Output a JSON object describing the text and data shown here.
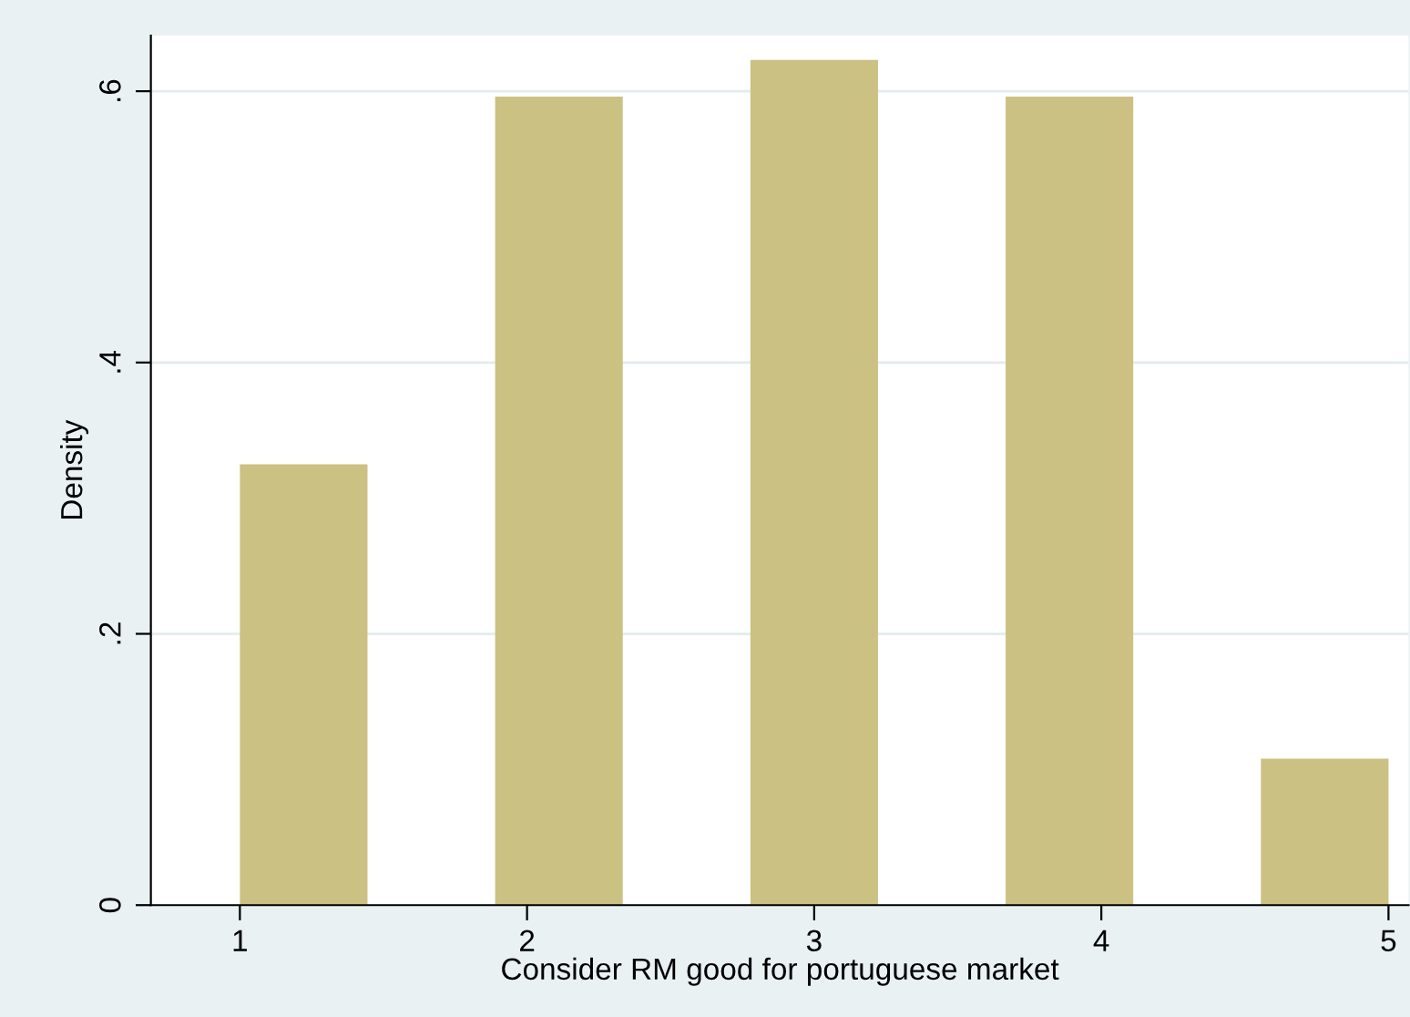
{
  "chart_data": {
    "type": "histogram",
    "xlabel": "Consider RM good for portuguese market",
    "ylabel": "Density",
    "bins": [
      1,
      1.4444,
      1.8889,
      2.3333,
      2.7778,
      3.2222,
      3.6667,
      4.1111,
      4.5556,
      5
    ],
    "values": [
      0.325,
      0,
      0.596,
      0,
      0.623,
      0,
      0.596,
      0,
      0.108
    ],
    "color": "#cbc182",
    "xlim": [
      0.69,
      5.07
    ],
    "xticks": [
      1,
      2,
      3,
      4,
      5
    ],
    "ylim": [
      0,
      0.641
    ],
    "yticks": [
      0,
      {
        "value": 0.2,
        "label": ".2"
      },
      {
        "value": 0.4,
        "label": ".4"
      },
      {
        "value": 0.6,
        "label": ".6"
      }
    ],
    "grid": "y"
  }
}
